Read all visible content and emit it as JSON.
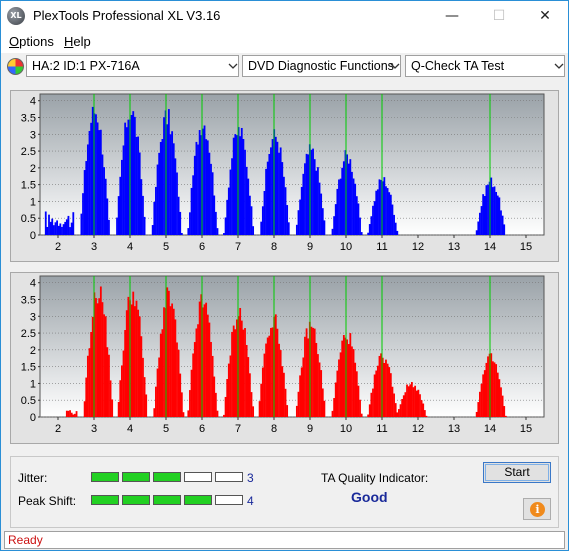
{
  "window": {
    "title": "PlexTools Professional XL V3.16",
    "icon": "plextools-xl-icon",
    "icon_text": "XL"
  },
  "controls": {
    "minimize": "—",
    "maximize": "☐",
    "close": "✕"
  },
  "menu": [
    {
      "label": "Options",
      "accel": "O",
      "rest": "ptions"
    },
    {
      "label": "Help",
      "accel": "H",
      "rest": "elp"
    }
  ],
  "toolbar": {
    "drive": "HA:2 ID:1  PX-716A",
    "function": "DVD Diagnostic Functions",
    "test": "Q-Check TA Test"
  },
  "colors": {
    "top_series": "#0000ff",
    "bottom_series": "#ff0000",
    "gridline": "#00cc00",
    "status_text": "#cc1111",
    "meter_on": "#22d022",
    "value_text": "#1a2a9a"
  },
  "chart_data": [
    {
      "type": "bar",
      "color": "#0000ff",
      "x_ticks": [
        "2",
        "3",
        "4",
        "5",
        "6",
        "7",
        "8",
        "9",
        "10",
        "11",
        "12",
        "13",
        "14",
        "15"
      ],
      "y_ticks": [
        "4",
        "3.5",
        "3",
        "2.5",
        "2",
        "1.5",
        "1",
        "0.5",
        "0"
      ],
      "xlim": [
        1.5,
        15.5
      ],
      "ylim": [
        0,
        4.2
      ],
      "peaks": [
        {
          "x": 3.0,
          "h": 3.7
        },
        {
          "x": 4.0,
          "h": 3.7
        },
        {
          "x": 5.0,
          "h": 3.5
        },
        {
          "x": 6.0,
          "h": 3.35
        },
        {
          "x": 7.0,
          "h": 3.1
        },
        {
          "x": 8.0,
          "h": 2.95
        },
        {
          "x": 9.0,
          "h": 2.5
        },
        {
          "x": 10.0,
          "h": 2.35
        },
        {
          "x": 11.0,
          "h": 1.65
        },
        {
          "x": 14.0,
          "h": 1.6
        }
      ],
      "low_region": {
        "from": 1.6,
        "to": 2.4,
        "h": 0.7
      }
    },
    {
      "type": "bar",
      "color": "#ff0000",
      "x_ticks": [
        "2",
        "3",
        "4",
        "5",
        "6",
        "7",
        "8",
        "9",
        "10",
        "11",
        "12",
        "13",
        "14",
        "15"
      ],
      "y_ticks": [
        "4",
        "3.5",
        "3",
        "2.5",
        "2",
        "1.5",
        "1",
        "0.5",
        "0"
      ],
      "xlim": [
        1.5,
        15.5
      ],
      "ylim": [
        0,
        4.2
      ],
      "peaks": [
        {
          "x": 3.1,
          "h": 3.75
        },
        {
          "x": 4.05,
          "h": 3.7
        },
        {
          "x": 5.05,
          "h": 3.55
        },
        {
          "x": 6.0,
          "h": 3.4
        },
        {
          "x": 7.0,
          "h": 3.1
        },
        {
          "x": 7.95,
          "h": 2.9
        },
        {
          "x": 9.0,
          "h": 2.7
        },
        {
          "x": 10.0,
          "h": 2.45
        },
        {
          "x": 11.0,
          "h": 1.8
        },
        {
          "x": 11.8,
          "h": 1.0
        },
        {
          "x": 14.0,
          "h": 1.75
        }
      ],
      "low_region": {
        "from": 2.2,
        "to": 2.5,
        "h": 0.2
      }
    }
  ],
  "quality": {
    "jitter_label": "Jitter:",
    "jitter_value": "3",
    "jitter_level": 3,
    "peak_label": "Peak Shift:",
    "peak_value": "4",
    "peak_level": 4,
    "meter_segments": 5,
    "ta_label": "TA Quality Indicator:",
    "ta_value": "Good"
  },
  "buttons": {
    "start": "Start",
    "info_glyph": "i"
  },
  "status": "Ready"
}
